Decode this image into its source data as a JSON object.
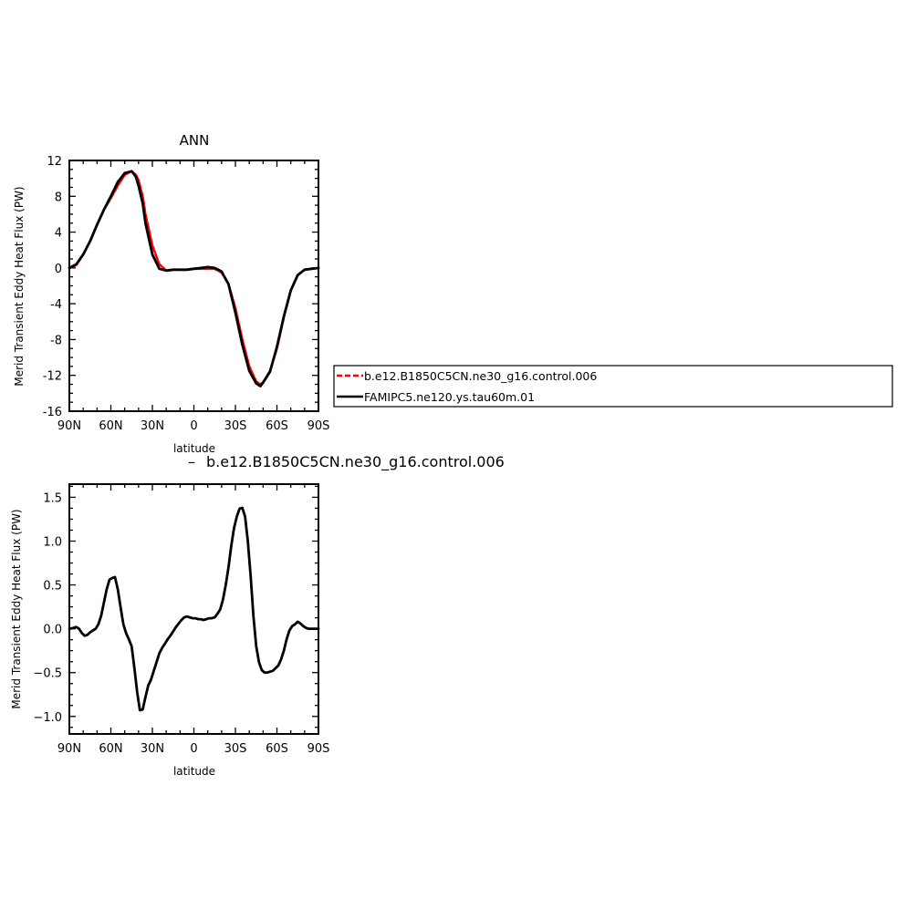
{
  "chart_data": [
    {
      "type": "line",
      "title": "ANN",
      "xlabel": "latitude",
      "ylabel": "Merid Transient Eddy Heat Flux (PW)",
      "xlim": [
        -90,
        90
      ],
      "ylim": [
        -16,
        12
      ],
      "x_tick_values": [
        -90,
        -60,
        -30,
        0,
        30,
        60,
        90
      ],
      "x_tick_labels": [
        "90N",
        "60N",
        "30N",
        "0",
        "30S",
        "60S",
        "90S"
      ],
      "y_tick_values": [
        -16,
        -12,
        -8,
        -4,
        0,
        4,
        8,
        12
      ],
      "y_tick_labels": [
        "-16",
        "-12",
        "-8",
        "-4",
        "0",
        "4",
        "8",
        "12"
      ],
      "legend_placement": "right",
      "series": [
        {
          "name": "b.e12.B1850C5CN.ne30_g16.control.006",
          "color": "#ff0000",
          "dash": true,
          "x": [
            -90,
            -85,
            -80,
            -75,
            -70,
            -65,
            -60,
            -55,
            -50,
            -45,
            -42,
            -40,
            -37,
            -35,
            -30,
            -25,
            -20,
            -15,
            -10,
            -5,
            0,
            5,
            10,
            15,
            20,
            25,
            30,
            35,
            40,
            45,
            48,
            50,
            55,
            60,
            65,
            70,
            75,
            80,
            85,
            90
          ],
          "y": [
            0,
            0.3,
            1.5,
            3.0,
            4.8,
            6.5,
            7.8,
            9.2,
            10.4,
            10.8,
            10.4,
            9.8,
            8.0,
            6.0,
            2.5,
            0.4,
            -0.3,
            -0.2,
            -0.2,
            -0.2,
            -0.1,
            -0.1,
            -0.1,
            -0.1,
            -0.5,
            -1.8,
            -4.5,
            -8.0,
            -11.0,
            -12.7,
            -13.0,
            -12.8,
            -11.5,
            -9.0,
            -5.5,
            -2.5,
            -0.8,
            -0.2,
            -0.1,
            0
          ]
        },
        {
          "name": "FAMIPC5.ne120.ys.tau60m.01",
          "color": "#000000",
          "dash": false,
          "x": [
            -90,
            -85,
            -80,
            -75,
            -70,
            -65,
            -60,
            -55,
            -50,
            -45,
            -42,
            -40,
            -37,
            -35,
            -30,
            -25,
            -20,
            -15,
            -10,
            -5,
            0,
            5,
            10,
            15,
            20,
            25,
            30,
            35,
            40,
            45,
            48,
            50,
            55,
            60,
            65,
            70,
            75,
            80,
            85,
            90
          ],
          "y": [
            0,
            0.4,
            1.5,
            3.0,
            4.8,
            6.5,
            8.0,
            9.6,
            10.6,
            10.8,
            10.2,
            9.2,
            7.2,
            5.0,
            1.5,
            -0.1,
            -0.3,
            -0.2,
            -0.2,
            -0.2,
            -0.1,
            0,
            0.1,
            0,
            -0.4,
            -1.8,
            -5.0,
            -8.6,
            -11.5,
            -12.9,
            -13.2,
            -12.8,
            -11.6,
            -8.8,
            -5.4,
            -2.5,
            -0.8,
            -0.2,
            -0.1,
            0
          ]
        }
      ]
    },
    {
      "type": "line",
      "title": "b.e12.B1850C5CN.ne30_g16.control.006",
      "xlabel": "latitude",
      "ylabel": "Merid Transient Eddy Heat Flux (PW)",
      "xlim": [
        -90,
        90
      ],
      "ylim": [
        -1.2,
        1.65
      ],
      "x_tick_values": [
        -90,
        -60,
        -30,
        0,
        30,
        60,
        90
      ],
      "x_tick_labels": [
        "90N",
        "60N",
        "30N",
        "0",
        "30S",
        "60S",
        "90S"
      ],
      "y_tick_values": [
        -1.0,
        -0.5,
        0.0,
        0.5,
        1.0,
        1.5
      ],
      "y_tick_labels": [
        "−1.0",
        "−0.5",
        "0.0",
        "0.5",
        "1.0",
        "1.5"
      ],
      "series": [
        {
          "color": "#000000",
          "x": [
            -90,
            -87,
            -85,
            -83,
            -81,
            -79,
            -77,
            -75,
            -73,
            -71,
            -69,
            -67,
            -65,
            -63,
            -61,
            -59,
            -57,
            -55,
            -53,
            -51,
            -49,
            -47,
            -45,
            -43,
            -41,
            -39,
            -37,
            -35,
            -33,
            -31,
            -29,
            -27,
            -25,
            -23,
            -21,
            -19,
            -17,
            -15,
            -13,
            -11,
            -9,
            -7,
            -5,
            -3,
            -1,
            1,
            3,
            5,
            7,
            9,
            11,
            13,
            15,
            17,
            19,
            21,
            23,
            25,
            27,
            29,
            31,
            33,
            35,
            37,
            39,
            41,
            43,
            45,
            47,
            49,
            51,
            53,
            55,
            57,
            59,
            61,
            63,
            65,
            67,
            69,
            71,
            73,
            75,
            77,
            79,
            81,
            83,
            85,
            87,
            89,
            90
          ],
          "y": [
            0.0,
            0.01,
            0.02,
            0.0,
            -0.05,
            -0.08,
            -0.07,
            -0.04,
            -0.02,
            0.0,
            0.05,
            0.15,
            0.3,
            0.45,
            0.56,
            0.58,
            0.59,
            0.45,
            0.25,
            0.05,
            -0.05,
            -0.12,
            -0.2,
            -0.45,
            -0.72,
            -0.93,
            -0.92,
            -0.78,
            -0.65,
            -0.58,
            -0.48,
            -0.38,
            -0.28,
            -0.22,
            -0.17,
            -0.12,
            -0.08,
            -0.03,
            0.02,
            0.06,
            0.1,
            0.13,
            0.14,
            0.13,
            0.12,
            0.12,
            0.11,
            0.11,
            0.1,
            0.11,
            0.12,
            0.12,
            0.13,
            0.17,
            0.22,
            0.33,
            0.5,
            0.7,
            0.95,
            1.15,
            1.28,
            1.37,
            1.38,
            1.28,
            1.0,
            0.6,
            0.15,
            -0.2,
            -0.38,
            -0.47,
            -0.5,
            -0.5,
            -0.49,
            -0.48,
            -0.45,
            -0.42,
            -0.35,
            -0.25,
            -0.12,
            -0.02,
            0.03,
            0.05,
            0.08,
            0.06,
            0.03,
            0.01,
            0.0,
            0.0,
            0.0,
            0.0,
            0.0
          ]
        }
      ]
    }
  ]
}
